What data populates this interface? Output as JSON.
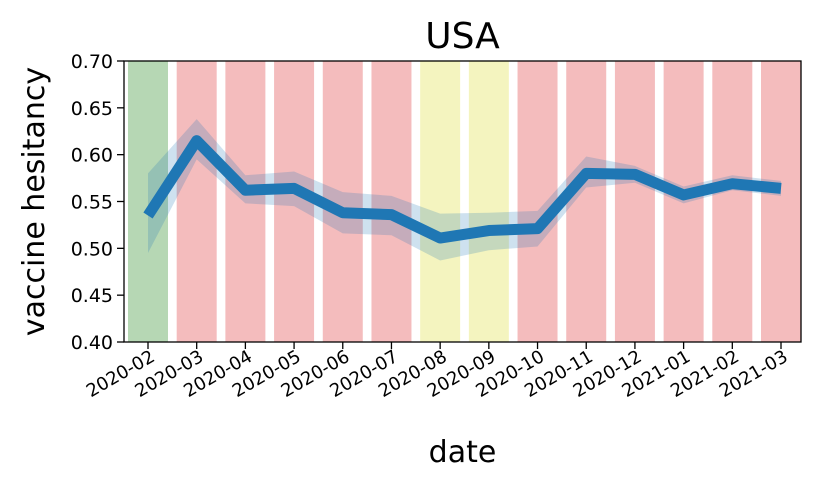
{
  "chart_data": {
    "type": "line",
    "title": "USA",
    "xlabel": "date",
    "ylabel": "vaccine hesitancy",
    "ylim": [
      0.4,
      0.7
    ],
    "y_ticks": [
      "0.40",
      "0.45",
      "0.50",
      "0.55",
      "0.60",
      "0.65",
      "0.70"
    ],
    "categories": [
      "2020-02",
      "2020-03",
      "2020-04",
      "2020-05",
      "2020-06",
      "2020-07",
      "2020-08",
      "2020-09",
      "2020-10",
      "2020-11",
      "2020-12",
      "2021-01",
      "2021-02",
      "2021-03"
    ],
    "series": [
      {
        "values": [
          0.535,
          0.615,
          0.562,
          0.564,
          0.538,
          0.536,
          0.511,
          0.519,
          0.521,
          0.58,
          0.579,
          0.557,
          0.569,
          0.564
        ],
        "lower": [
          0.495,
          0.595,
          0.548,
          0.545,
          0.516,
          0.514,
          0.487,
          0.498,
          0.502,
          0.565,
          0.57,
          0.548,
          0.562,
          0.556
        ],
        "upper": [
          0.58,
          0.638,
          0.578,
          0.582,
          0.56,
          0.556,
          0.537,
          0.538,
          0.54,
          0.598,
          0.588,
          0.566,
          0.578,
          0.572
        ],
        "color": "#1f77b4"
      }
    ],
    "background_bands": {
      "colors": [
        "green",
        "red",
        "red",
        "red",
        "red",
        "red",
        "yellow",
        "yellow",
        "red",
        "red",
        "red",
        "red",
        "red",
        "red"
      ],
      "palette": {
        "green": "#b6d7b4",
        "red": "#f4bcbd",
        "yellow": "#f4f4bf"
      }
    },
    "grid": false
  }
}
